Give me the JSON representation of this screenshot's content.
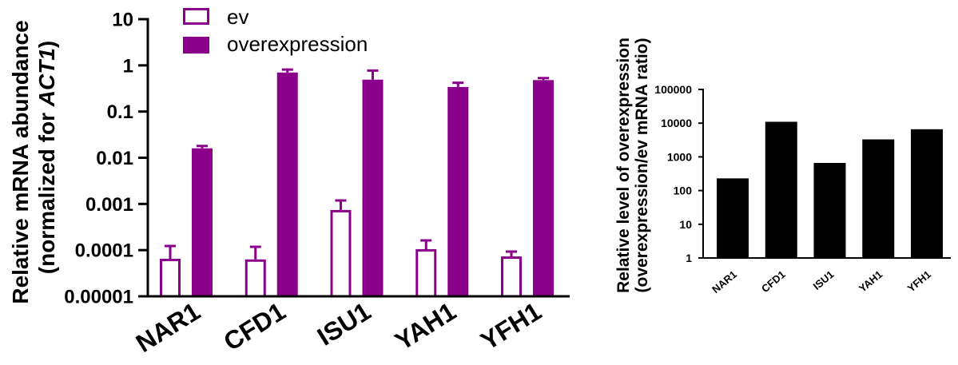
{
  "chart_data": [
    {
      "type": "bar",
      "categories": [
        "NAR1",
        "CFD1",
        "ISU1",
        "YAH1",
        "YFH1"
      ],
      "series": [
        {
          "name": "ev",
          "color": "#8b008b",
          "hollow": true,
          "values": [
            6.5e-05,
            6.3e-05,
            0.00074,
            0.000105,
            7.3e-05
          ],
          "error_plus": [
            5.8e-05,
            5.5e-05,
            0.00045,
            5.7e-05,
            2e-05
          ]
        },
        {
          "name": "overexpression",
          "color": "#8b008b",
          "hollow": false,
          "values": [
            0.016,
            0.7,
            0.49,
            0.34,
            0.48
          ],
          "error_plus": [
            0.002,
            0.11,
            0.28,
            0.08,
            0.05
          ]
        }
      ],
      "ylabel": {
        "line1": "Relative mRNA abundance",
        "line2": [
          {
            "text": "(normalized for ",
            "italic": false
          },
          {
            "text": "ACT1",
            "italic": true
          },
          {
            "text": ")",
            "italic": false
          }
        ]
      },
      "yscale": "log",
      "ylim": [
        1e-05,
        10
      ],
      "yticks": [
        "10",
        "1",
        "0.1",
        "0.01",
        "0.001",
        "0.0001",
        "0.00001"
      ],
      "legend": "top-left",
      "grid": false
    },
    {
      "type": "bar",
      "categories": [
        "NAR1",
        "CFD1",
        "ISU1",
        "YAH1",
        "YFH1"
      ],
      "values": [
        230,
        11000,
        660,
        3300,
        6600
      ],
      "color": "#000000",
      "ylabel": {
        "line1": "Relative level of overexpression",
        "line2": "(overexpression/ev mRNA ratio)"
      },
      "yscale": "log",
      "ylim": [
        1,
        100000
      ],
      "yticks": [
        "100000",
        "10000",
        "1000",
        "100",
        "10",
        "1"
      ],
      "legend": "none",
      "grid": false
    }
  ]
}
